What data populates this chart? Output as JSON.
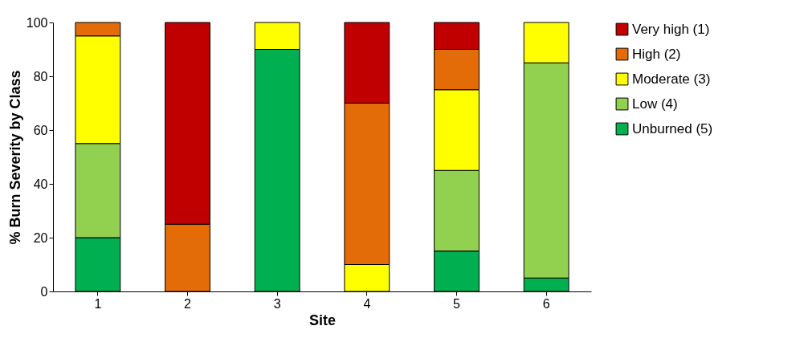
{
  "chart_data": {
    "type": "bar",
    "stacked": true,
    "xlabel": "Site",
    "ylabel": "% Burn Severity by Class",
    "categories": [
      "1",
      "2",
      "3",
      "4",
      "5",
      "6"
    ],
    "series": [
      {
        "name": "Unburned (5)",
        "color": "#00b050",
        "values": [
          20,
          null,
          90,
          null,
          15,
          5
        ]
      },
      {
        "name": "Low (4)",
        "color": "#92d050",
        "values": [
          35,
          null,
          null,
          null,
          30,
          80
        ]
      },
      {
        "name": "Moderate (3)",
        "color": "#ffff00",
        "values": [
          40,
          null,
          10,
          10,
          30,
          15
        ]
      },
      {
        "name": "High (2)",
        "color": "#e36c09",
        "values": [
          5,
          25,
          null,
          60,
          15,
          null
        ]
      },
      {
        "name": "Very high (1)",
        "color": "#c00000",
        "values": [
          null,
          75,
          null,
          30,
          10,
          null
        ]
      }
    ],
    "ylim": [
      0,
      100
    ],
    "yticks": [
      0,
      20,
      40,
      60,
      80,
      100
    ],
    "grid": false,
    "legend": "right"
  }
}
